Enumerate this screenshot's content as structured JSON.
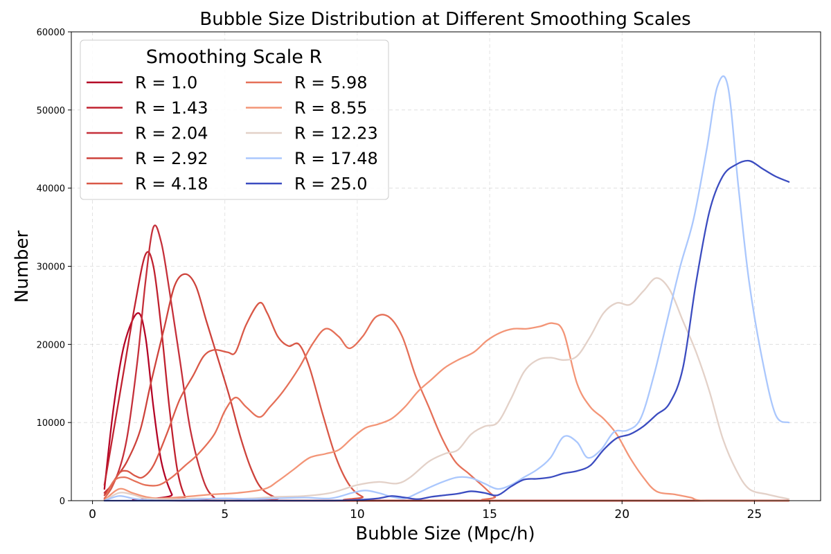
{
  "chart_data": {
    "type": "line",
    "title": "Bubble Size Distribution at Different Smoothing Scales",
    "xlabel": "Bubble Size (Mpc/h)",
    "ylabel": "Number",
    "xlim": [
      -0.8,
      27.5
    ],
    "ylim": [
      0,
      60000
    ],
    "xticks": [
      0,
      5,
      10,
      15,
      20,
      25
    ],
    "yticks": [
      0,
      10000,
      20000,
      30000,
      40000,
      50000,
      60000
    ],
    "grid": true,
    "legend": {
      "title": "Smoothing Scale R",
      "placement": "top-left",
      "columns": 2
    },
    "series": [
      {
        "name": "R = 1.0",
        "color": "#b40426",
        "points": [
          [
            0.45,
            1500
          ],
          [
            0.8,
            12000
          ],
          [
            1.2,
            20000
          ],
          [
            1.7,
            24000
          ],
          [
            2.0,
            21000
          ],
          [
            2.3,
            12000
          ],
          [
            2.6,
            5000
          ],
          [
            3.0,
            800
          ],
          [
            3.3,
            0
          ],
          [
            26.3,
            0
          ]
        ]
      },
      {
        "name": "R = 1.43",
        "color": "#c0212f",
        "points": [
          [
            0.45,
            2000
          ],
          [
            0.8,
            9000
          ],
          [
            1.2,
            17000
          ],
          [
            1.6,
            25000
          ],
          [
            2.0,
            31500
          ],
          [
            2.3,
            30000
          ],
          [
            2.6,
            22000
          ],
          [
            2.9,
            12000
          ],
          [
            3.2,
            4000
          ],
          [
            3.5,
            500
          ],
          [
            3.8,
            0
          ],
          [
            26.3,
            0
          ]
        ]
      },
      {
        "name": "R = 2.04",
        "color": "#c5303a",
        "points": [
          [
            0.45,
            1000
          ],
          [
            0.9,
            3000
          ],
          [
            1.3,
            8000
          ],
          [
            1.7,
            18000
          ],
          [
            2.0,
            28000
          ],
          [
            2.3,
            35000
          ],
          [
            2.6,
            33000
          ],
          [
            2.9,
            27000
          ],
          [
            3.3,
            18000
          ],
          [
            3.7,
            9000
          ],
          [
            4.2,
            2500
          ],
          [
            4.6,
            400
          ],
          [
            5.0,
            0
          ],
          [
            26.3,
            0
          ]
        ]
      },
      {
        "name": "R = 2.92",
        "color": "#cd423b",
        "points": [
          [
            0.45,
            700
          ],
          [
            0.9,
            3000
          ],
          [
            1.3,
            5000
          ],
          [
            1.8,
            9000
          ],
          [
            2.2,
            15000
          ],
          [
            2.7,
            22000
          ],
          [
            3.1,
            27500
          ],
          [
            3.5,
            29000
          ],
          [
            3.9,
            27500
          ],
          [
            4.3,
            23000
          ],
          [
            4.8,
            17500
          ],
          [
            5.2,
            13000
          ],
          [
            5.6,
            8000
          ],
          [
            6.0,
            4000
          ],
          [
            6.4,
            1500
          ],
          [
            7.0,
            300
          ],
          [
            7.6,
            0
          ],
          [
            26.3,
            0
          ]
        ]
      },
      {
        "name": "R = 4.18",
        "color": "#d95847",
        "points": [
          [
            0.45,
            300
          ],
          [
            0.7,
            1500
          ],
          [
            1.0,
            3500
          ],
          [
            1.3,
            3800
          ],
          [
            1.6,
            3200
          ],
          [
            1.9,
            3000
          ],
          [
            2.3,
            4500
          ],
          [
            2.8,
            8500
          ],
          [
            3.3,
            13000
          ],
          [
            3.8,
            16000
          ],
          [
            4.2,
            18500
          ],
          [
            4.6,
            19300
          ],
          [
            5.1,
            19000
          ],
          [
            5.4,
            19000
          ],
          [
            5.8,
            22500
          ],
          [
            6.3,
            25300
          ],
          [
            6.6,
            24000
          ],
          [
            7.0,
            21000
          ],
          [
            7.4,
            19800
          ],
          [
            7.8,
            20000
          ],
          [
            8.2,
            17000
          ],
          [
            8.7,
            11000
          ],
          [
            9.2,
            5500
          ],
          [
            9.7,
            2000
          ],
          [
            10.2,
            500
          ],
          [
            10.8,
            0
          ],
          [
            26.3,
            0
          ]
        ]
      },
      {
        "name": "R = 5.98",
        "color": "#e57058",
        "points": [
          [
            0.45,
            100
          ],
          [
            0.8,
            2500
          ],
          [
            1.2,
            3000
          ],
          [
            1.6,
            2500
          ],
          [
            2.0,
            2000
          ],
          [
            2.5,
            2000
          ],
          [
            3.0,
            3000
          ],
          [
            3.5,
            4500
          ],
          [
            4.0,
            6000
          ],
          [
            4.6,
            8500
          ],
          [
            5.0,
            11500
          ],
          [
            5.4,
            13200
          ],
          [
            5.8,
            12000
          ],
          [
            6.3,
            10700
          ],
          [
            6.7,
            12000
          ],
          [
            7.2,
            14000
          ],
          [
            7.8,
            17000
          ],
          [
            8.3,
            20000
          ],
          [
            8.8,
            22000
          ],
          [
            9.3,
            21000
          ],
          [
            9.7,
            19500
          ],
          [
            10.2,
            21000
          ],
          [
            10.7,
            23500
          ],
          [
            11.2,
            23500
          ],
          [
            11.7,
            21000
          ],
          [
            12.2,
            16000
          ],
          [
            12.7,
            12000
          ],
          [
            13.2,
            8000
          ],
          [
            13.7,
            5000
          ],
          [
            14.2,
            3500
          ],
          [
            14.7,
            2000
          ],
          [
            15.2,
            500
          ],
          [
            15.6,
            0
          ],
          [
            26.3,
            0
          ]
        ]
      },
      {
        "name": "R = 8.55",
        "color": "#f39577",
        "points": [
          [
            0.45,
            50
          ],
          [
            1.0,
            1500
          ],
          [
            1.5,
            1000
          ],
          [
            2.0,
            500
          ],
          [
            2.5,
            300
          ],
          [
            3.5,
            500
          ],
          [
            4.5,
            800
          ],
          [
            5.5,
            1000
          ],
          [
            6.5,
            1500
          ],
          [
            7.0,
            2500
          ],
          [
            7.6,
            4000
          ],
          [
            8.2,
            5500
          ],
          [
            8.8,
            6000
          ],
          [
            9.3,
            6500
          ],
          [
            9.8,
            8000
          ],
          [
            10.3,
            9300
          ],
          [
            10.8,
            9800
          ],
          [
            11.3,
            10500
          ],
          [
            11.8,
            12000
          ],
          [
            12.3,
            14000
          ],
          [
            12.8,
            15500
          ],
          [
            13.3,
            17000
          ],
          [
            13.8,
            18000
          ],
          [
            14.4,
            19000
          ],
          [
            14.9,
            20500
          ],
          [
            15.4,
            21500
          ],
          [
            15.9,
            22000
          ],
          [
            16.4,
            22000
          ],
          [
            16.9,
            22300
          ],
          [
            17.4,
            22700
          ],
          [
            17.8,
            21500
          ],
          [
            18.3,
            15000
          ],
          [
            18.8,
            12000
          ],
          [
            19.3,
            10500
          ],
          [
            19.8,
            8500
          ],
          [
            20.3,
            5500
          ],
          [
            20.8,
            3000
          ],
          [
            21.3,
            1200
          ],
          [
            22.0,
            800
          ],
          [
            22.6,
            400
          ],
          [
            23.2,
            0
          ],
          [
            26.3,
            0
          ]
        ]
      },
      {
        "name": "R = 12.23",
        "color": "#e3d1c8",
        "points": [
          [
            0.45,
            0
          ],
          [
            1.0,
            1000
          ],
          [
            1.5,
            800
          ],
          [
            2.0,
            300
          ],
          [
            3.0,
            200
          ],
          [
            4.0,
            300
          ],
          [
            5.0,
            200
          ],
          [
            6.0,
            300
          ],
          [
            7.0,
            500
          ],
          [
            8.0,
            600
          ],
          [
            9.0,
            1000
          ],
          [
            10.0,
            2000
          ],
          [
            10.8,
            2400
          ],
          [
            11.5,
            2200
          ],
          [
            12.0,
            3000
          ],
          [
            12.7,
            5000
          ],
          [
            13.3,
            6000
          ],
          [
            13.8,
            6500
          ],
          [
            14.3,
            8500
          ],
          [
            14.8,
            9500
          ],
          [
            15.3,
            10000
          ],
          [
            15.8,
            13000
          ],
          [
            16.3,
            16500
          ],
          [
            16.8,
            18000
          ],
          [
            17.3,
            18300
          ],
          [
            17.8,
            18000
          ],
          [
            18.3,
            18500
          ],
          [
            18.8,
            21000
          ],
          [
            19.3,
            24000
          ],
          [
            19.8,
            25300
          ],
          [
            20.3,
            25100
          ],
          [
            20.8,
            26800
          ],
          [
            21.3,
            28500
          ],
          [
            21.8,
            27000
          ],
          [
            22.3,
            23000
          ],
          [
            22.8,
            19000
          ],
          [
            23.3,
            14000
          ],
          [
            23.8,
            8000
          ],
          [
            24.3,
            4000
          ],
          [
            24.8,
            1500
          ],
          [
            25.5,
            800
          ],
          [
            26.3,
            200
          ]
        ]
      },
      {
        "name": "R = 17.48",
        "color": "#aac7fd",
        "points": [
          [
            0.45,
            0
          ],
          [
            1.0,
            600
          ],
          [
            1.5,
            300
          ],
          [
            2.0,
            100
          ],
          [
            3.0,
            0
          ],
          [
            4.0,
            200
          ],
          [
            5.0,
            300
          ],
          [
            6.0,
            200
          ],
          [
            7.0,
            300
          ],
          [
            8.0,
            400
          ],
          [
            9.0,
            300
          ],
          [
            9.8,
            1000
          ],
          [
            10.3,
            1300
          ],
          [
            10.8,
            1000
          ],
          [
            11.3,
            500
          ],
          [
            11.8,
            300
          ],
          [
            12.3,
            1000
          ],
          [
            12.8,
            1800
          ],
          [
            13.3,
            2500
          ],
          [
            13.8,
            3000
          ],
          [
            14.3,
            2900
          ],
          [
            14.8,
            2200
          ],
          [
            15.3,
            1500
          ],
          [
            15.8,
            2000
          ],
          [
            16.3,
            3000
          ],
          [
            16.8,
            4000
          ],
          [
            17.3,
            5500
          ],
          [
            17.8,
            8200
          ],
          [
            18.3,
            7500
          ],
          [
            18.7,
            5500
          ],
          [
            19.2,
            6500
          ],
          [
            19.7,
            8800
          ],
          [
            20.2,
            9000
          ],
          [
            20.7,
            10500
          ],
          [
            21.2,
            16000
          ],
          [
            21.7,
            23000
          ],
          [
            22.2,
            30000
          ],
          [
            22.7,
            36000
          ],
          [
            23.2,
            45000
          ],
          [
            23.6,
            53000
          ],
          [
            24.0,
            53000
          ],
          [
            24.4,
            40000
          ],
          [
            24.8,
            28000
          ],
          [
            25.3,
            18000
          ],
          [
            25.8,
            11000
          ],
          [
            26.3,
            10000
          ]
        ]
      },
      {
        "name": "R = 25.0",
        "color": "#3b4cc0",
        "points": [
          [
            0.45,
            0
          ],
          [
            3.0,
            0
          ],
          [
            6.0,
            0
          ],
          [
            8.0,
            0
          ],
          [
            9.0,
            0
          ],
          [
            10.0,
            100
          ],
          [
            10.8,
            300
          ],
          [
            11.3,
            600
          ],
          [
            11.8,
            400
          ],
          [
            12.3,
            200
          ],
          [
            12.8,
            500
          ],
          [
            13.3,
            700
          ],
          [
            13.8,
            900
          ],
          [
            14.3,
            1200
          ],
          [
            14.8,
            1000
          ],
          [
            15.3,
            700
          ],
          [
            15.8,
            1800
          ],
          [
            16.3,
            2700
          ],
          [
            16.8,
            2800
          ],
          [
            17.3,
            3000
          ],
          [
            17.8,
            3500
          ],
          [
            18.3,
            3800
          ],
          [
            18.8,
            4500
          ],
          [
            19.3,
            6500
          ],
          [
            19.8,
            8000
          ],
          [
            20.3,
            8500
          ],
          [
            20.8,
            9500
          ],
          [
            21.3,
            11000
          ],
          [
            21.8,
            12500
          ],
          [
            22.3,
            17000
          ],
          [
            22.8,
            28000
          ],
          [
            23.3,
            37000
          ],
          [
            23.8,
            41500
          ],
          [
            24.3,
            43000
          ],
          [
            24.8,
            43500
          ],
          [
            25.3,
            42500
          ],
          [
            25.8,
            41500
          ],
          [
            26.3,
            40800
          ]
        ]
      }
    ]
  }
}
